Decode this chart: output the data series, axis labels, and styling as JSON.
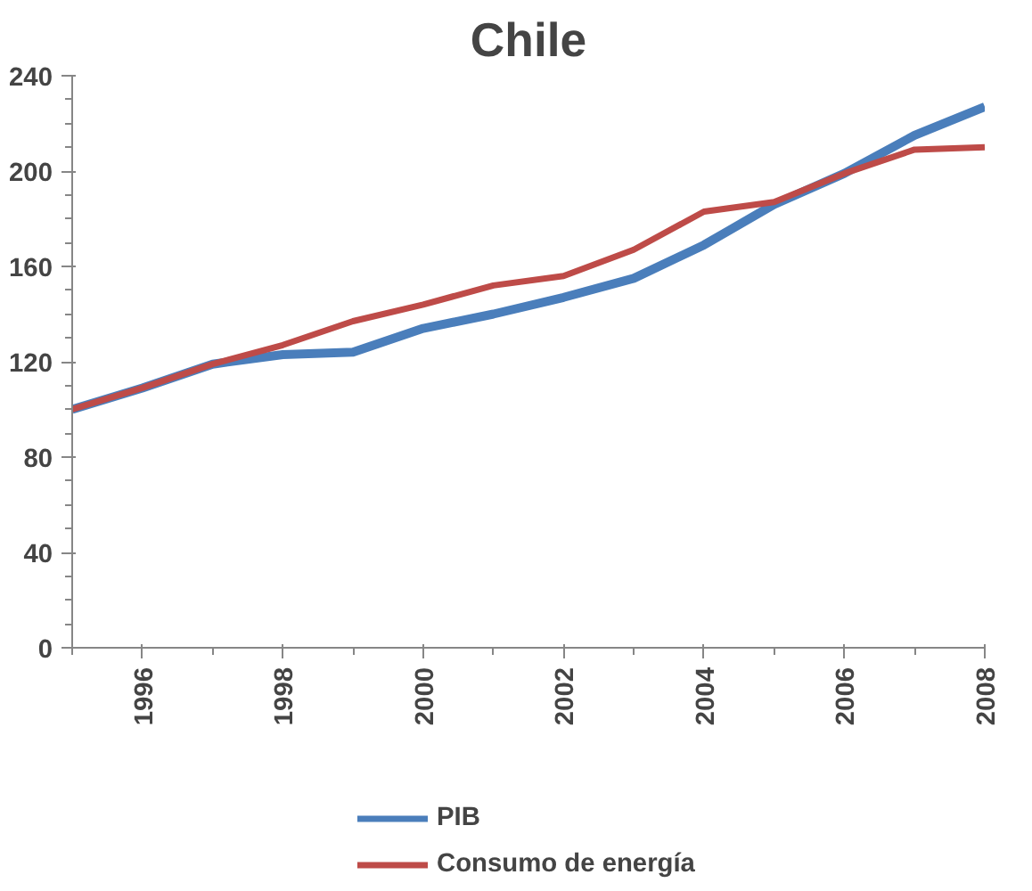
{
  "chart_data": {
    "type": "line",
    "title": "Chile",
    "x": [
      1995,
      1996,
      1997,
      1998,
      1999,
      2000,
      2001,
      2002,
      2003,
      2004,
      2005,
      2006,
      2007,
      2008
    ],
    "series": [
      {
        "name": "PIB",
        "color": "#4a7ebb",
        "values": [
          100,
          109,
          119,
          123,
          124,
          134,
          140,
          147,
          155,
          169,
          186,
          199,
          215,
          227
        ]
      },
      {
        "name": "Consumo de energía",
        "color": "#be4b48",
        "values": [
          100,
          109,
          119,
          127,
          137,
          144,
          152,
          156,
          167,
          183,
          187,
          199,
          209,
          210
        ]
      }
    ],
    "xlim": [
      1995,
      2008
    ],
    "xticks": [
      1996,
      1998,
      2000,
      2002,
      2004,
      2006,
      2008
    ],
    "ylim": [
      0,
      240
    ],
    "yticks": [
      0,
      40,
      80,
      120,
      160,
      200,
      240
    ],
    "grid": false,
    "legend": "bottom",
    "marker": "none",
    "line_style": "solid"
  }
}
